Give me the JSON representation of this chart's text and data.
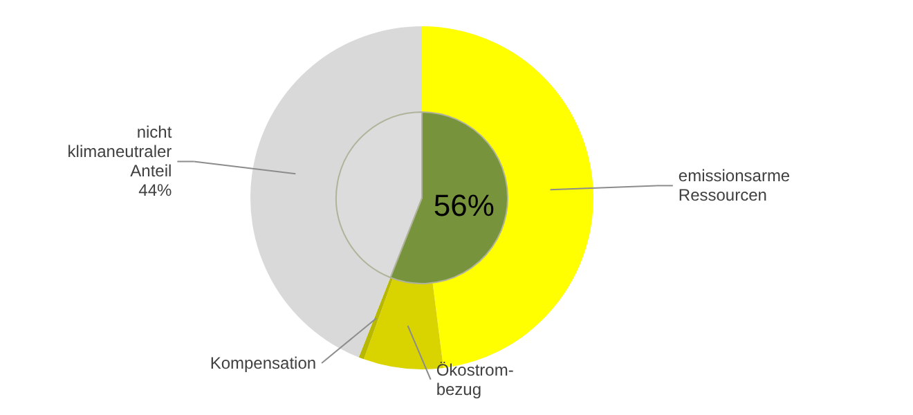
{
  "chart_data": {
    "type": "donut",
    "categories": [
      "emissionsarme Ressourcen",
      "Ökostrom-bezug",
      "Kompensation",
      "nicht klimaneutraler Anteil"
    ],
    "series": [
      {
        "values": [
          48,
          7.5,
          0.5,
          44
        ],
        "colors": [
          "#ffff00",
          "#d9d400",
          "#b8b800",
          "#d9d9d9"
        ],
        "value_labels": [
          null,
          null,
          null,
          "44%"
        ]
      },
      {
        "type": "pie",
        "values": [
          56,
          null,
          null,
          44
        ],
        "colors": [
          "#77933c",
          null,
          null,
          "#dcdcdc"
        ],
        "value_labels": [
          "56%",
          null,
          null,
          null
        ]
      }
    ]
  }
}
